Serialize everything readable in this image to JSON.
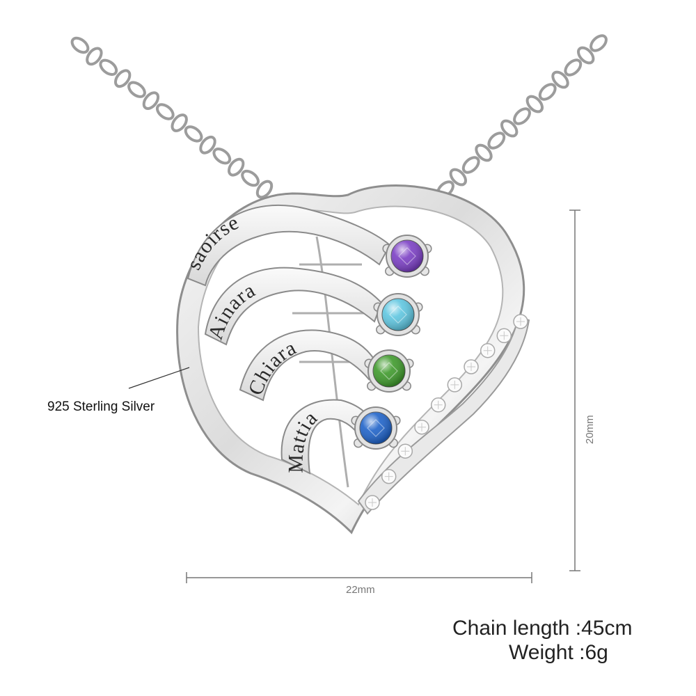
{
  "product": {
    "engraved_names": [
      "saoirse",
      "Ainara",
      "Chiara",
      "Mattia"
    ],
    "birthstone_colors": [
      "#7b3fc4",
      "#5fc6e0",
      "#3f9a2c",
      "#1f63c9"
    ],
    "material_label": "925 Sterling Silver",
    "width_label": "22mm",
    "height_label": "20mm",
    "chain_length_label": "Chain length :45cm",
    "weight_label": "Weight :6g",
    "chain_link_icon": "chain-link-icon",
    "accent_stone_icon": "cubic-zirconia-icon"
  }
}
